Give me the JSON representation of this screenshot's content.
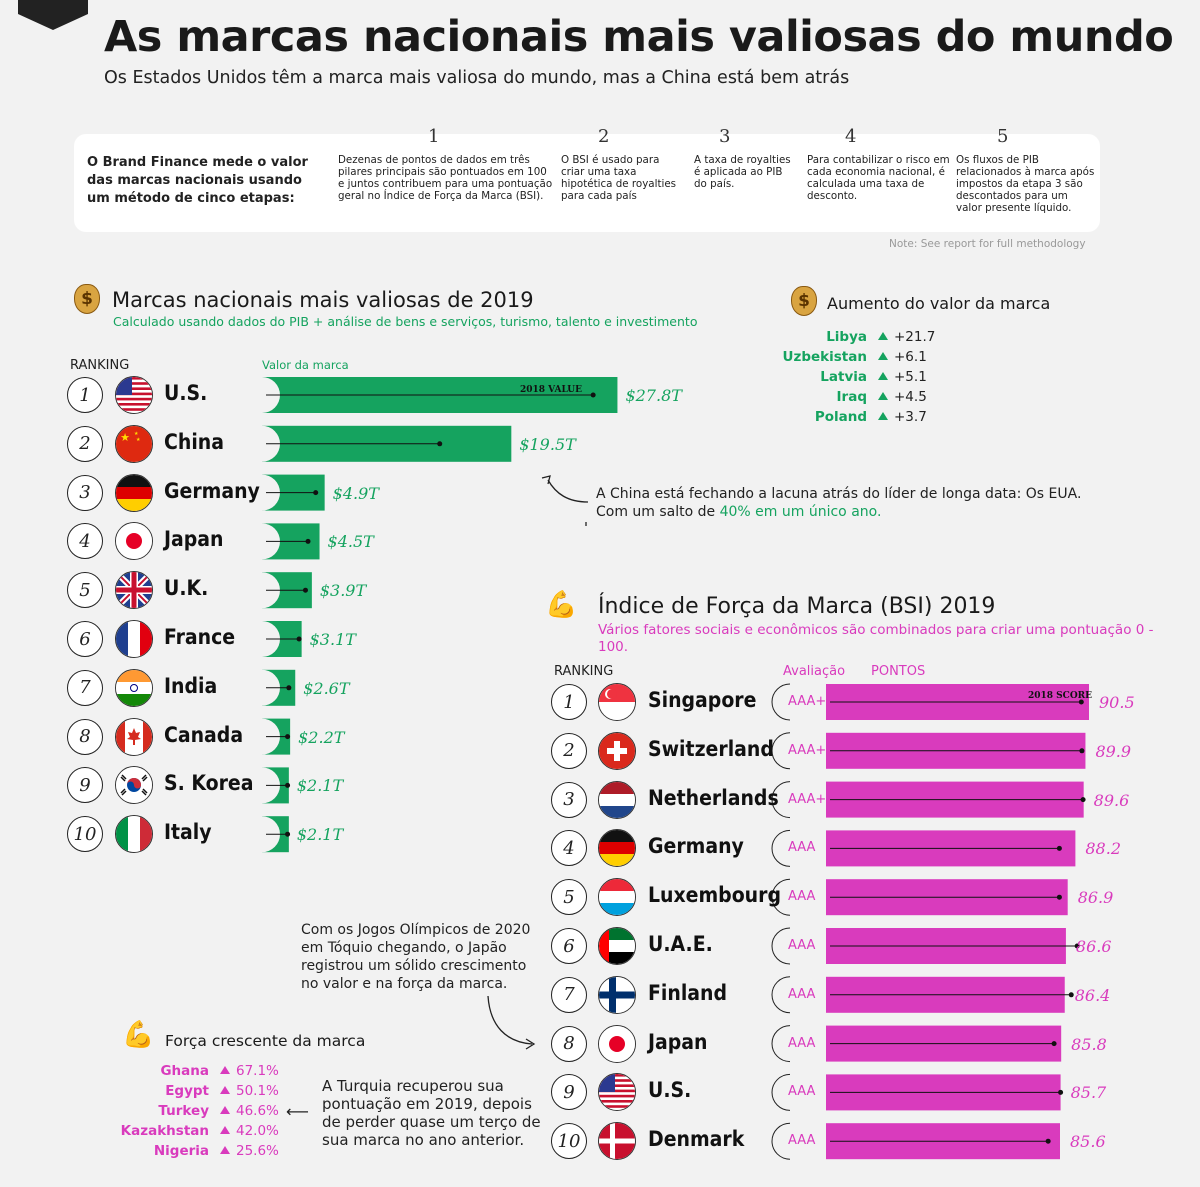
{
  "header": {
    "title": "As marcas nacionais mais valiosas do mundo",
    "subtitle": "Os Estados Unidos têm a marca mais valiosa do mundo, mas a China está bem atrás"
  },
  "methodology": {
    "intro": "O Brand Finance mede o valor das marcas nacionais usando um método de cinco etapas:",
    "steps": [
      {
        "num": "1",
        "text": "Dezenas de pontos de dados em três pilares principais são pontuados em 100 e juntos contribuem para uma pontuação geral no Índice de Força da Marca (BSI)."
      },
      {
        "num": "2",
        "text": "O BSI é usado para criar uma taxa hipotética de royalties para cada país"
      },
      {
        "num": "3",
        "text": "A taxa de royalties é aplicada ao PIB do país."
      },
      {
        "num": "4",
        "text": "Para contabilizar o risco em cada economia nacional, é calculada uma taxa de desconto."
      },
      {
        "num": "5",
        "text": "Os fluxos de PIB relacionados à marca após impostos da etapa 3 são descontados para um valor presente líquido."
      }
    ],
    "note": "Note: See report for full methodology"
  },
  "value_section": {
    "title": "Marcas nacionais mais valiosas de 2019",
    "subtitle": "Calculado usando dados do PIB + análise de bens e serviços, turismo, talento e investimento",
    "ranking_label": "RANKING",
    "value_label": "Valor da marca",
    "marker_label": "2018 VALUE"
  },
  "gains_section": {
    "title": "Aumento do valor da marca",
    "items": [
      {
        "country": "Libya",
        "value": "+21.7"
      },
      {
        "country": "Uzbekistan",
        "value": "+6.1"
      },
      {
        "country": "Latvia",
        "value": "+5.1"
      },
      {
        "country": "Iraq",
        "value": "+4.5"
      },
      {
        "country": "Poland",
        "value": "+3.7"
      }
    ]
  },
  "china_annotation": {
    "line1": "A China está fechando a lacuna atrás do líder de longa data: Os EUA.",
    "line2_pre": "Com um salto de ",
    "line2_highlight": "40% em um único ano."
  },
  "bsi_section": {
    "title": "Índice de Força da Marca (BSI) 2019",
    "subtitle": "Vários fatores sociais e econômicos são combinados para criar uma pontuação 0 - 100.",
    "ranking_label": "RANKING",
    "rating_label": "Avaliação",
    "points_label": "PONTOS",
    "marker_label": "2018 SCORE"
  },
  "japan_annotation": "Com os Jogos Olímpicos de 2020 em Tóquio chegando, o Japão registrou um sólido crescimento no valor e na força da marca.",
  "turkey_annotation": "A Turquia recuperou sua pontuação em 2019, depois de perder quase um terço de sua marca no ano anterior.",
  "strength_section": {
    "title": "Força crescente da marca",
    "items": [
      {
        "country": "Ghana",
        "value": "67.1%"
      },
      {
        "country": "Egypt",
        "value": "50.1%"
      },
      {
        "country": "Turkey",
        "value": "46.6%"
      },
      {
        "country": "Kazakhstan",
        "value": "42.0%"
      },
      {
        "country": "Nigeria",
        "value": "25.6%"
      }
    ]
  },
  "colors": {
    "green": "#15a35f",
    "pink": "#d93bbd"
  },
  "chart_data": [
    {
      "type": "bar",
      "title": "Marcas nacionais mais valiosas de 2019",
      "categories": [
        "U.S.",
        "China",
        "Germany",
        "Japan",
        "U.K.",
        "France",
        "India",
        "Canada",
        "S. Korea",
        "Italy"
      ],
      "ranks": [
        "1",
        "2",
        "3",
        "4",
        "5",
        "6",
        "7",
        "8",
        "9",
        "10"
      ],
      "flags": [
        "us",
        "cn",
        "de",
        "jp",
        "uk",
        "fr",
        "in",
        "ca",
        "kr",
        "it"
      ],
      "values": [
        27.8,
        19.5,
        4.9,
        4.5,
        3.9,
        3.1,
        2.6,
        2.2,
        2.1,
        2.1
      ],
      "labels": [
        "$27.8T",
        "$19.5T",
        "$4.9T",
        "$4.5T",
        "$3.9T",
        "$3.1T",
        "$2.6T",
        "$2.2T",
        "$2.1T",
        "$2.1T"
      ],
      "series_2018": [
        25.9,
        13.9,
        4.2,
        3.6,
        3.4,
        2.9,
        2.1,
        2.0,
        2.0,
        2.0
      ],
      "xlim": [
        0,
        28
      ]
    },
    {
      "type": "bar",
      "title": "Índice de Força da Marca (BSI) 2019",
      "categories": [
        "Singapore",
        "Switzerland",
        "Netherlands",
        "Germany",
        "Luxembourg",
        "U.A.E.",
        "Finland",
        "Japan",
        "U.S.",
        "Denmark"
      ],
      "ranks": [
        "1",
        "2",
        "3",
        "4",
        "5",
        "6",
        "7",
        "8",
        "9",
        "10"
      ],
      "flags": [
        "sg",
        "ch",
        "nl",
        "de",
        "lu",
        "ae",
        "fi",
        "jp",
        "us",
        "dk"
      ],
      "ratings": [
        "AAA+",
        "AAA+",
        "AAA+",
        "AAA",
        "AAA",
        "AAA",
        "AAA",
        "AAA",
        "AAA",
        "AAA"
      ],
      "values": [
        90.5,
        89.9,
        89.6,
        88.2,
        86.9,
        86.6,
        86.4,
        85.8,
        85.7,
        85.6
      ],
      "labels": [
        "90.5",
        "89.9",
        "89.6",
        "88.2",
        "86.9",
        "86.6",
        "86.4",
        "85.8",
        "85.7",
        "85.6"
      ],
      "series_2018": [
        89.2,
        89.3,
        89.5,
        85.5,
        85.5,
        88.5,
        87.5,
        84.6,
        85.7,
        83.6
      ],
      "xlim": [
        85,
        90.5
      ]
    }
  ]
}
